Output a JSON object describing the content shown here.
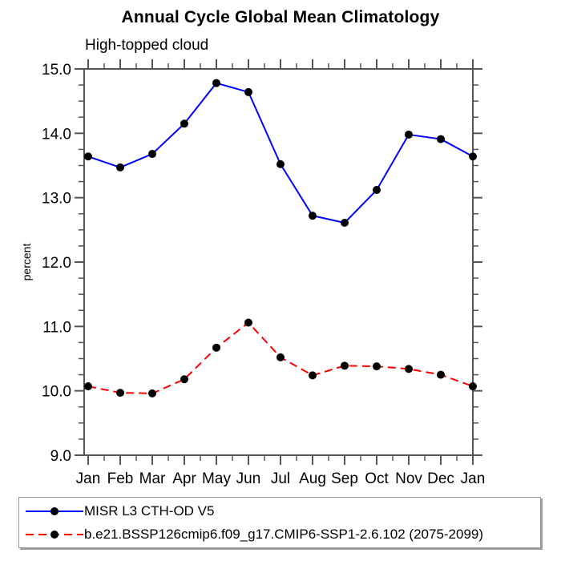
{
  "chart_data": {
    "type": "line",
    "title": "Annual Cycle Global Mean Climatology",
    "subtitle": "High-topped cloud",
    "ylabel": "percent",
    "xlabel": "",
    "categories": [
      "Jan",
      "Feb",
      "Mar",
      "Apr",
      "May",
      "Jun",
      "Jul",
      "Aug",
      "Sep",
      "Oct",
      "Nov",
      "Dec",
      "Jan"
    ],
    "ylim": [
      9.0,
      15.0
    ],
    "y_major_ticks": [
      9.0,
      10.0,
      11.0,
      12.0,
      13.0,
      14.0,
      15.0
    ],
    "y_tick_labels": [
      "9.0",
      "10.0",
      "11.0",
      "12.0",
      "13.0",
      "14.0",
      "15.0"
    ],
    "y_minor_step": 0.25,
    "grid": false,
    "legend_position": "bottom",
    "frame_color": "#555555",
    "series": [
      {
        "name": "MISR L3 CTH-OD V5",
        "color": "#0000ff",
        "style": "solid",
        "marker": "filled-circle",
        "marker_color": "#000000",
        "values": [
          13.64,
          13.47,
          13.68,
          14.15,
          14.78,
          14.64,
          13.52,
          12.72,
          12.61,
          13.12,
          13.98,
          13.91,
          13.64
        ]
      },
      {
        "name": "b.e21.BSSP126cmip6.f09_g17.CMIP6-SSP1-2.6.102 (2075-2099)",
        "color": "#ff0000",
        "style": "dashed",
        "marker": "filled-circle",
        "marker_color": "#000000",
        "values": [
          10.07,
          9.97,
          9.96,
          10.18,
          10.67,
          11.06,
          10.52,
          10.24,
          10.39,
          10.38,
          10.34,
          10.25,
          10.07
        ]
      }
    ]
  }
}
